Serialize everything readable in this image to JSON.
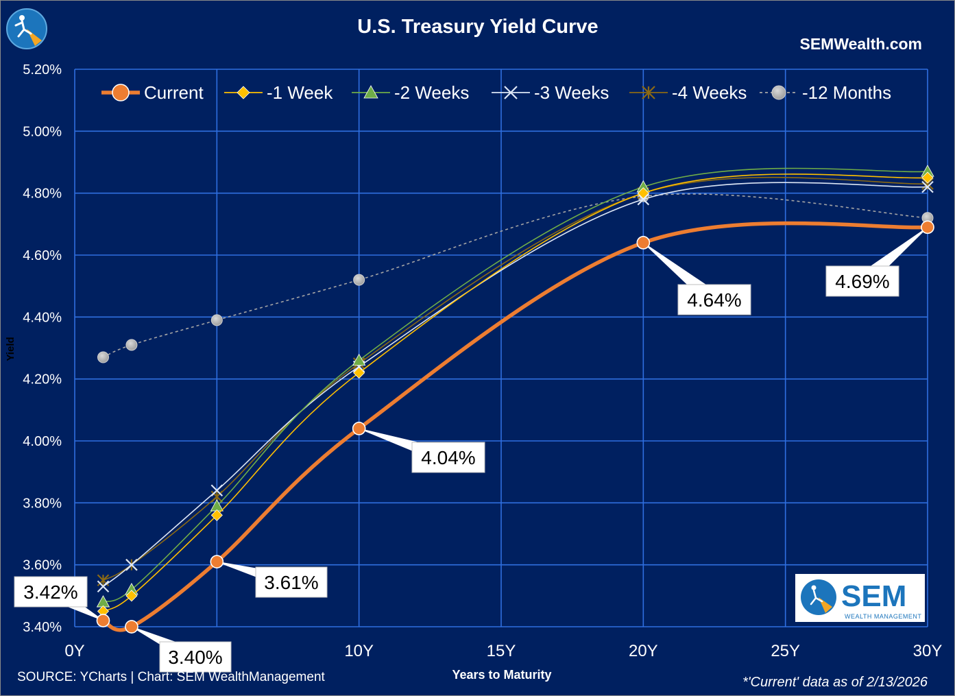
{
  "chart_data": {
    "type": "line",
    "title": "U.S. Treasury Yield Curve",
    "website": "SEMWealth.com",
    "xlabel": "Years to Maturity",
    "ylabel": "Yield",
    "x": [
      1,
      2,
      5,
      10,
      20,
      30
    ],
    "xlim": [
      0,
      30
    ],
    "ylim": [
      3.4,
      5.2
    ],
    "x_ticks": [
      0,
      5,
      10,
      15,
      20,
      25,
      30
    ],
    "x_tick_labels": [
      "0Y",
      "",
      "10Y",
      "15Y",
      "20Y",
      "25Y",
      "30Y"
    ],
    "y_ticks": [
      3.4,
      3.6,
      3.8,
      4.0,
      4.2,
      4.4,
      4.6,
      4.8,
      5.0,
      5.2
    ],
    "y_tick_labels": [
      "3.40%",
      "3.60%",
      "3.80%",
      "4.00%",
      "4.20%",
      "4.40%",
      "4.60%",
      "4.80%",
      "5.00%",
      "5.20%"
    ],
    "grid": true,
    "legend_position": "top",
    "series": [
      {
        "name": "-12 Months",
        "values": [
          4.27,
          4.31,
          4.39,
          4.52,
          4.79,
          4.72
        ],
        "color": "#a6a6a6",
        "marker": "circle",
        "style": "dashed"
      },
      {
        "name": "-4 Weeks",
        "values": [
          3.55,
          3.6,
          3.82,
          4.25,
          4.8,
          4.83
        ],
        "color": "#8b6914",
        "marker": "star",
        "style": "solid"
      },
      {
        "name": "-3 Weeks",
        "values": [
          3.53,
          3.6,
          3.84,
          4.24,
          4.78,
          4.82
        ],
        "color": "#dde6f5",
        "marker": "x",
        "style": "solid"
      },
      {
        "name": "-2 Weeks",
        "values": [
          3.48,
          3.52,
          3.79,
          4.26,
          4.82,
          4.87
        ],
        "color": "#70ad47",
        "marker": "triangle",
        "style": "solid"
      },
      {
        "name": "-1 Week",
        "values": [
          3.45,
          3.5,
          3.76,
          4.22,
          4.8,
          4.85
        ],
        "color": "#ffc000",
        "marker": "diamond",
        "style": "solid"
      },
      {
        "name": "Current",
        "values": [
          3.42,
          3.4,
          3.61,
          4.04,
          4.64,
          4.69
        ],
        "color": "#ed7d31",
        "marker": "circle",
        "style": "solid"
      }
    ],
    "legend_order": [
      "Current",
      "-1 Week",
      "-2 Weeks",
      "-3 Weeks",
      "-4 Weeks",
      "-12 Months"
    ],
    "data_labels": [
      {
        "series": "Current",
        "x": 1,
        "text": "3.42%"
      },
      {
        "series": "Current",
        "x": 2,
        "text": "3.40%"
      },
      {
        "series": "Current",
        "x": 5,
        "text": "3.61%"
      },
      {
        "series": "Current",
        "x": 10,
        "text": "4.04%"
      },
      {
        "series": "Current",
        "x": 20,
        "text": "4.64%"
      },
      {
        "series": "Current",
        "x": 30,
        "text": "4.69%"
      }
    ],
    "source": "SOURCE: YCharts | Chart: SEM WealthManagement",
    "footnote": "*'Current' data as of 2/13/2026",
    "logo": {
      "text": "SEM",
      "subtext": "WEALTH MANAGEMENT"
    }
  }
}
